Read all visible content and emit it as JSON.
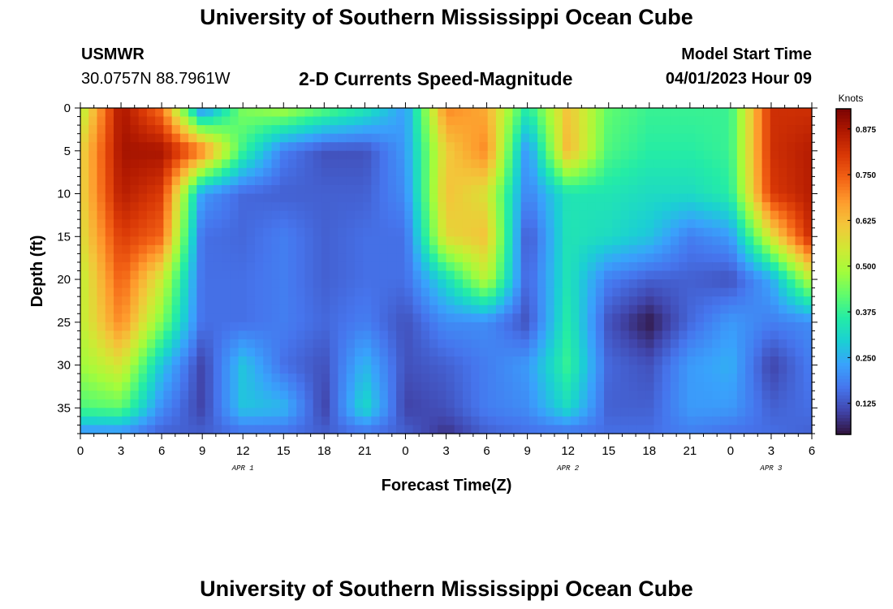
{
  "header": {
    "title": "University of Southern Mississippi Ocean Cube",
    "station": "USMWR",
    "coords": "30.0757N  88.7961W",
    "subtitle": "2-D Currents Speed-Magnitude",
    "model_start_label": "Model Start Time",
    "model_start_value": "04/01/2023 Hour 09",
    "footer_title": "University of Southern Mississippi Ocean Cube"
  },
  "colors": {
    "colormap": [
      "#30123b",
      "#4145ab",
      "#4675ed",
      "#39a2fc",
      "#1bcfd4",
      "#24eca6",
      "#61fc6c",
      "#a4fc3b",
      "#d1e834",
      "#f3c63a",
      "#fe9b2d",
      "#f36315",
      "#d93806",
      "#b11901",
      "#7a0403"
    ]
  },
  "chart_data": {
    "type": "heatmap",
    "title": "2-D Currents Speed-Magnitude",
    "xlabel": "Forecast Time(Z)",
    "ylabel": "Depth (ft)",
    "colorbar_label": "Knots",
    "x_ticks": [
      "0",
      "3",
      "6",
      "9",
      "12",
      "15",
      "18",
      "21",
      "0",
      "3",
      "6",
      "9",
      "12",
      "15",
      "18",
      "21",
      "0",
      "3",
      "6"
    ],
    "x_hours": [
      0,
      3,
      6,
      9,
      12,
      15,
      18,
      21,
      24,
      27,
      30,
      33,
      36,
      39,
      42,
      45,
      48,
      51,
      54
    ],
    "date_labels": [
      {
        "label": "APR 1",
        "hour": 12
      },
      {
        "label": "APR 2",
        "hour": 36
      },
      {
        "label": "APR 3",
        "hour": 51
      }
    ],
    "y_ticks": [
      "0",
      "5",
      "10",
      "15",
      "20",
      "25",
      "30",
      "35"
    ],
    "y_values": [
      0,
      5,
      10,
      15,
      20,
      25,
      30,
      35
    ],
    "xlim": [
      0,
      54
    ],
    "ylim": [
      0,
      38
    ],
    "colorbar_ticks": [
      "0.875",
      "0.750",
      "0.625",
      "0.500",
      "0.375",
      "0.250",
      "0.125"
    ],
    "colorbar_values": [
      0.875,
      0.75,
      0.625,
      0.5,
      0.375,
      0.25,
      0.125
    ],
    "colorbar_range": [
      0.04,
      0.93
    ],
    "grid_x_hours": [
      0,
      3,
      6,
      9,
      12,
      15,
      18,
      21,
      24,
      27,
      30,
      33,
      36,
      39,
      42,
      45,
      48,
      51,
      54
    ],
    "grid_depths_ft": [
      0,
      5,
      10,
      15,
      20,
      25,
      30,
      35,
      38
    ],
    "values": [
      [
        0.5,
        0.88,
        0.72,
        0.18,
        0.45,
        0.5,
        0.42,
        0.35,
        0.22,
        0.7,
        0.65,
        0.35,
        0.62,
        0.42,
        0.38,
        0.38,
        0.38,
        0.82,
        0.82
      ],
      [
        0.58,
        0.88,
        0.88,
        0.72,
        0.38,
        0.18,
        0.12,
        0.12,
        0.22,
        0.6,
        0.7,
        0.2,
        0.64,
        0.4,
        0.36,
        0.36,
        0.38,
        0.82,
        0.86
      ],
      [
        0.58,
        0.86,
        0.8,
        0.22,
        0.15,
        0.14,
        0.14,
        0.14,
        0.2,
        0.62,
        0.56,
        0.18,
        0.34,
        0.34,
        0.32,
        0.32,
        0.36,
        0.8,
        0.86
      ],
      [
        0.56,
        0.8,
        0.74,
        0.16,
        0.15,
        0.18,
        0.14,
        0.16,
        0.16,
        0.58,
        0.62,
        0.12,
        0.34,
        0.32,
        0.28,
        0.18,
        0.22,
        0.56,
        0.84
      ],
      [
        0.52,
        0.75,
        0.54,
        0.16,
        0.16,
        0.18,
        0.14,
        0.16,
        0.16,
        0.32,
        0.52,
        0.14,
        0.34,
        0.18,
        0.14,
        0.14,
        0.12,
        0.24,
        0.52
      ],
      [
        0.52,
        0.7,
        0.45,
        0.16,
        0.16,
        0.18,
        0.15,
        0.18,
        0.12,
        0.2,
        0.2,
        0.12,
        0.36,
        0.12,
        0.05,
        0.15,
        0.22,
        0.18,
        0.2
      ],
      [
        0.48,
        0.56,
        0.28,
        0.1,
        0.28,
        0.16,
        0.12,
        0.26,
        0.12,
        0.14,
        0.18,
        0.22,
        0.38,
        0.15,
        0.12,
        0.22,
        0.25,
        0.1,
        0.18
      ],
      [
        0.4,
        0.42,
        0.2,
        0.1,
        0.28,
        0.26,
        0.1,
        0.32,
        0.1,
        0.12,
        0.18,
        0.2,
        0.32,
        0.14,
        0.14,
        0.22,
        0.22,
        0.14,
        0.16
      ],
      [
        0.2,
        0.2,
        0.14,
        0.14,
        0.16,
        0.16,
        0.14,
        0.16,
        0.14,
        0.08,
        0.14,
        0.16,
        0.16,
        0.16,
        0.16,
        0.18,
        0.16,
        0.16,
        0.14
      ]
    ]
  }
}
